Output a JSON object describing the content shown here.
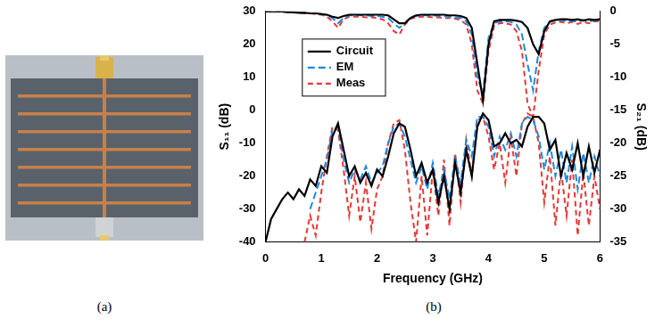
{
  "captions": [
    "(a)",
    "(b)"
  ],
  "chart_data": {
    "type": "line",
    "x_label": "Frequency (GHz)",
    "y_label": "S₁₁ (dB)",
    "y2_label": "S₂₁ (dB)",
    "xlim": [
      0,
      6
    ],
    "xticks": [
      0,
      1,
      2,
      3,
      4,
      5,
      6
    ],
    "ylim": [
      -40,
      30
    ],
    "yticks": [
      -40,
      -30,
      -20,
      -10,
      0,
      10,
      20,
      30
    ],
    "y2lim": [
      -35,
      0
    ],
    "y2ticks": [
      -35,
      -30,
      -25,
      -20,
      -15,
      -10,
      -5,
      0
    ],
    "grid": false,
    "legend": "upper left",
    "x": [
      0,
      0.1,
      0.2,
      0.3,
      0.4,
      0.5,
      0.6,
      0.7,
      0.8,
      0.9,
      1,
      1.1,
      1.2,
      1.3,
      1.4,
      1.5,
      1.6,
      1.7,
      1.8,
      1.9,
      2,
      2.1,
      2.2,
      2.3,
      2.4,
      2.5,
      2.6,
      2.7,
      2.8,
      2.9,
      3,
      3.1,
      3.2,
      3.3,
      3.4,
      3.5,
      3.6,
      3.7,
      3.8,
      3.9,
      4,
      4.1,
      4.2,
      4.3,
      4.4,
      4.5,
      4.6,
      4.7,
      4.8,
      4.9,
      5,
      5.1,
      5.2,
      5.3,
      5.4,
      5.5,
      5.6,
      5.7,
      5.8,
      5.9,
      6
    ],
    "series": [
      {
        "name": "Circuit",
        "color": "#000000",
        "line_style": "solid",
        "axis": "y",
        "values": [
          -40,
          -33,
          -30,
          -27,
          -25,
          -27,
          -24,
          -26,
          -21,
          -23,
          -17,
          -19,
          -8,
          -4,
          -12,
          -20,
          -17,
          -22,
          -19,
          -23,
          -18,
          -20,
          -14,
          -7,
          -4,
          -5,
          -12,
          -20,
          -16,
          -22,
          -18,
          -28,
          -20,
          -30,
          -16,
          -25,
          -12,
          -20,
          -5,
          -1,
          -3,
          -11,
          -10,
          -7,
          -10,
          -9,
          -11,
          -5,
          -2,
          -2,
          -4,
          -12,
          -9,
          -20,
          -13,
          -18,
          -10,
          -20,
          -11,
          -19,
          -12
        ]
      },
      {
        "name": "EM",
        "color": "#1e88e5",
        "line_style": "dashed",
        "axis": "y",
        "values": [
          null,
          null,
          null,
          null,
          null,
          null,
          null,
          null,
          -30,
          -25,
          -20,
          -15,
          -6,
          -5,
          -15,
          -22,
          -18,
          -21,
          -17,
          -22,
          -19,
          -17,
          -10,
          -5,
          -4,
          -8,
          -15,
          -22,
          -17,
          -24,
          -16,
          -26,
          -18,
          -27,
          -14,
          -22,
          -9,
          -14,
          -2,
          -2,
          -5,
          -14,
          -8,
          -12,
          -7,
          -14,
          -4,
          -2,
          -3,
          -8,
          -18,
          -10,
          -20,
          -12,
          -22,
          -11,
          -24,
          -13,
          -22,
          -14,
          -20
        ]
      },
      {
        "name": "Meas",
        "color": "#e53935",
        "line_style": "dashed",
        "axis": "y",
        "values": [
          null,
          null,
          null,
          null,
          null,
          null,
          null,
          -40,
          -32,
          -38,
          -25,
          -14,
          -5,
          -6,
          -18,
          -32,
          -20,
          -34,
          -22,
          -36,
          -24,
          -20,
          -10,
          -4,
          -3,
          -12,
          -28,
          -40,
          -20,
          -38,
          -18,
          -32,
          -15,
          -35,
          -13,
          -28,
          -9,
          -20,
          -3,
          -2,
          -8,
          -18,
          -10,
          -22,
          -8,
          -20,
          -4,
          -1,
          -2,
          -10,
          -28,
          -14,
          -35,
          -18,
          -32,
          -15,
          -38,
          -19,
          -35,
          -20,
          -30
        ]
      },
      {
        "name": "Circuit",
        "color": "#000000",
        "line_style": "solid",
        "axis": "y2",
        "values": [
          0,
          0,
          0,
          0,
          -0.1,
          -0.1,
          -0.2,
          -0.2,
          -0.3,
          -0.3,
          -0.4,
          -0.5,
          -0.8,
          -1.0,
          -0.7,
          -0.5,
          -0.5,
          -0.5,
          -0.5,
          -0.5,
          -0.5,
          -0.5,
          -0.6,
          -1.2,
          -1.8,
          -1.8,
          -1.0,
          -0.6,
          -0.5,
          -0.5,
          -0.5,
          -0.5,
          -0.5,
          -0.6,
          -0.6,
          -0.7,
          -1.0,
          -2.5,
          -8,
          -13.5,
          -5,
          -1.5,
          -1.3,
          -1.3,
          -1.3,
          -1.4,
          -1.6,
          -2.5,
          -5,
          -6.5,
          -3,
          -1.5,
          -1.3,
          -1.2,
          -1.2,
          -1.3,
          -1.2,
          -1.4,
          -1.2,
          -1.3,
          -1.2
        ]
      },
      {
        "name": "EM",
        "color": "#1e88e5",
        "line_style": "dashed",
        "axis": "y2",
        "values": [
          0,
          0,
          0,
          0,
          -0.1,
          -0.1,
          -0.2,
          -0.2,
          -0.3,
          -0.3,
          -0.4,
          -0.6,
          -1.0,
          -1.8,
          -1.0,
          -0.6,
          -0.6,
          -0.6,
          -0.6,
          -0.7,
          -0.7,
          -0.8,
          -1.0,
          -1.8,
          -2.5,
          -1.8,
          -0.9,
          -0.7,
          -0.6,
          -0.6,
          -0.6,
          -0.7,
          -0.7,
          -0.8,
          -0.9,
          -1.0,
          -1.5,
          -3.5,
          -10,
          -12.5,
          -4,
          -1.8,
          -1.5,
          -1.5,
          -1.6,
          -2.0,
          -3.5,
          -8,
          -12,
          -6,
          -2.5,
          -1.6,
          -1.4,
          -1.3,
          -1.5,
          -1.4,
          -1.6,
          -1.3,
          -1.5,
          -1.4,
          -1.3
        ]
      },
      {
        "name": "Meas",
        "color": "#e53935",
        "line_style": "dashed",
        "axis": "y2",
        "values": [
          0,
          0,
          0,
          -0.1,
          -0.1,
          -0.2,
          -0.2,
          -0.3,
          -0.3,
          -0.4,
          -0.5,
          -0.8,
          -1.5,
          -2.5,
          -1.2,
          -0.8,
          -0.8,
          -0.8,
          -0.9,
          -0.9,
          -1.0,
          -1.2,
          -1.8,
          -3.0,
          -3.5,
          -2.0,
          -1.1,
          -0.9,
          -0.8,
          -0.8,
          -0.9,
          -0.9,
          -1.0,
          -1.0,
          -1.1,
          -1.3,
          -2.0,
          -5,
          -12,
          -14,
          -6,
          -2.2,
          -1.8,
          -1.8,
          -2.0,
          -3.0,
          -6,
          -14,
          -16,
          -9,
          -3.5,
          -2.0,
          -1.7,
          -1.6,
          -1.8,
          -1.6,
          -1.9,
          -1.6,
          -1.8,
          -1.5,
          -1.5
        ]
      }
    ]
  }
}
